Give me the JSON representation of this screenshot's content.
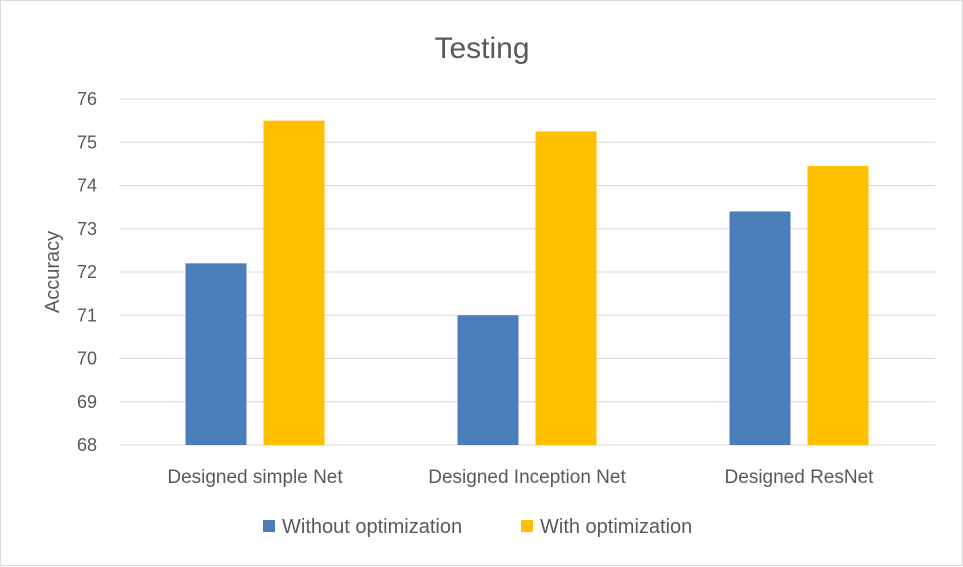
{
  "chart_data": {
    "type": "bar",
    "title": "Testing",
    "ylabel": "Accuracy",
    "xlabel": "",
    "categories": [
      "Designed simple Net",
      "Designed Inception Net",
      "Designed ResNet"
    ],
    "series": [
      {
        "name": "Without optimization",
        "color": "#4a7ebb",
        "values": [
          72.2,
          71.0,
          73.4
        ]
      },
      {
        "name": "With optimization",
        "color": "#ffc000",
        "values": [
          75.5,
          75.25,
          74.45
        ]
      }
    ],
    "ylim": [
      68,
      76
    ],
    "yticks": [
      "68",
      "69",
      "70",
      "71",
      "72",
      "73",
      "74",
      "75",
      "76"
    ],
    "grid": true,
    "legend_position": "bottom"
  }
}
